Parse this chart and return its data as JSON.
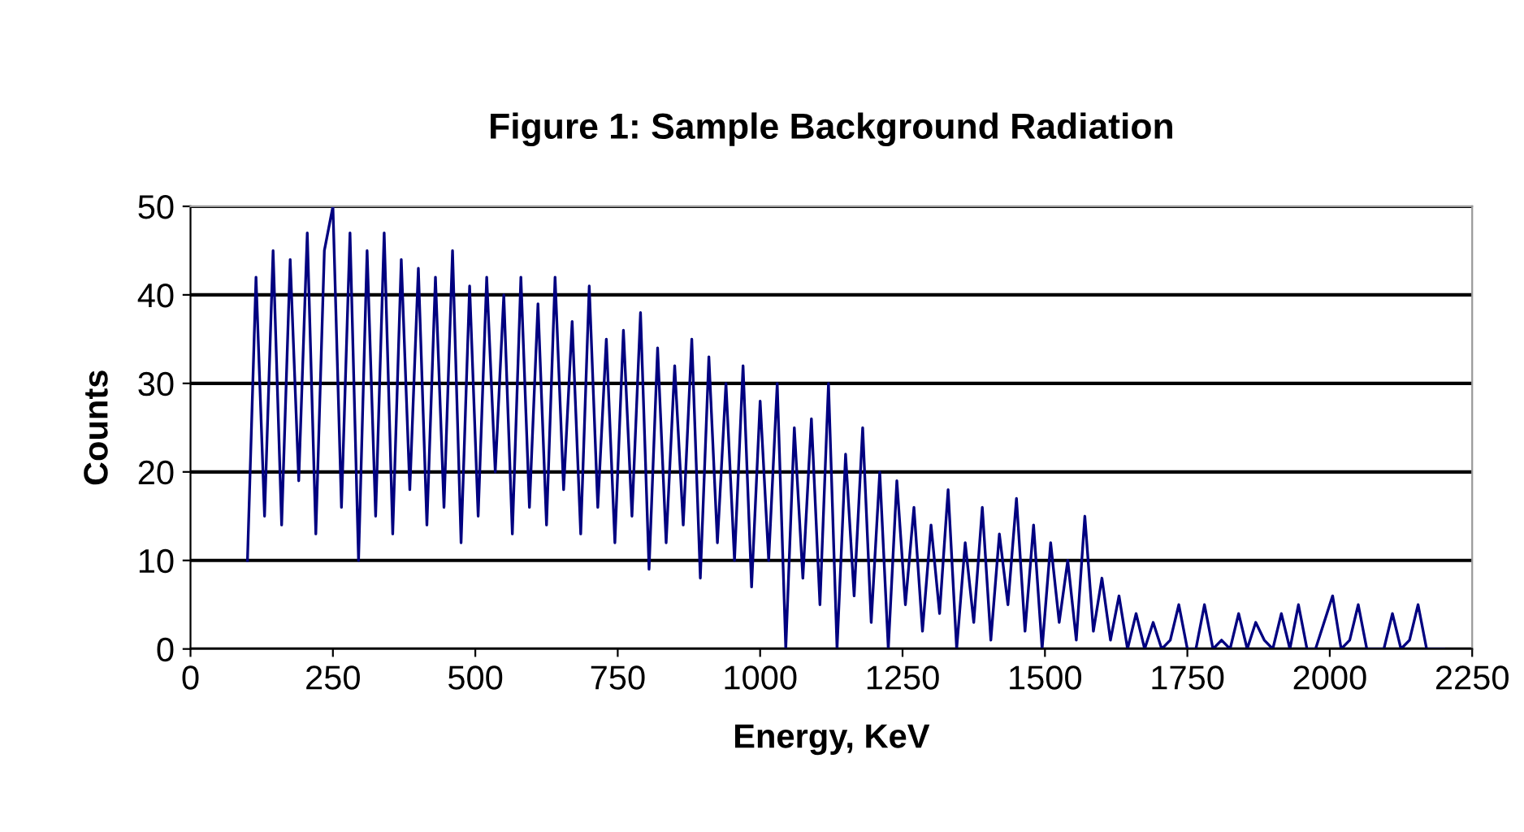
{
  "chart_data": {
    "type": "line",
    "title": "Figure 1: Sample Background Radiation",
    "xlabel": "Energy, KeV",
    "ylabel": "Counts",
    "x": [
      100,
      115,
      130,
      145,
      160,
      175,
      190,
      205,
      220,
      235,
      250,
      265,
      280,
      295,
      310,
      325,
      340,
      355,
      370,
      385,
      400,
      415,
      430,
      445,
      460,
      475,
      490,
      505,
      520,
      535,
      550,
      565,
      580,
      595,
      610,
      625,
      640,
      655,
      670,
      685,
      700,
      715,
      730,
      745,
      760,
      775,
      790,
      805,
      820,
      835,
      850,
      865,
      880,
      895,
      910,
      925,
      940,
      955,
      970,
      985,
      1000,
      1015,
      1030,
      1045,
      1060,
      1075,
      1090,
      1105,
      1120,
      1135,
      1150,
      1165,
      1180,
      1195,
      1210,
      1225,
      1240,
      1255,
      1270,
      1285,
      1300,
      1315,
      1330,
      1345,
      1360,
      1375,
      1390,
      1405,
      1420,
      1435,
      1450,
      1465,
      1480,
      1495,
      1510,
      1525,
      1540,
      1555,
      1570,
      1585,
      1600,
      1615,
      1630,
      1645,
      1660,
      1675,
      1690,
      1705,
      1720,
      1735,
      1750,
      1765,
      1780,
      1795,
      1810,
      1825,
      1840,
      1855,
      1870,
      1885,
      1900,
      1915,
      1930,
      1945,
      1960,
      1975,
      1990,
      2005,
      2020,
      2035,
      2050,
      2065,
      2080,
      2095,
      2110,
      2125,
      2140,
      2155,
      2170,
      2185,
      2200
    ],
    "series": [
      {
        "color": "#000080",
        "values": [
          10,
          42,
          15,
          45,
          14,
          44,
          19,
          47,
          13,
          45,
          50,
          16,
          47,
          10,
          45,
          15,
          47,
          13,
          44,
          18,
          43,
          14,
          42,
          16,
          45,
          12,
          41,
          15,
          42,
          20,
          40,
          13,
          42,
          16,
          39,
          14,
          42,
          18,
          37,
          13,
          41,
          16,
          35,
          12,
          36,
          15,
          38,
          9,
          34,
          12,
          32,
          14,
          35,
          8,
          33,
          12,
          30,
          10,
          32,
          7,
          28,
          10,
          30,
          0,
          25,
          8,
          26,
          5,
          30,
          0,
          22,
          6,
          25,
          3,
          20,
          0,
          19,
          5,
          16,
          2,
          14,
          4,
          18,
          0,
          12,
          3,
          16,
          1,
          13,
          5,
          17,
          2,
          14,
          0,
          12,
          3,
          10,
          1,
          15,
          2,
          8,
          1,
          6,
          0,
          4,
          0,
          3,
          0,
          1,
          5,
          0,
          0,
          5,
          0,
          1,
          0,
          4,
          0,
          3,
          1,
          0,
          4,
          0,
          5,
          0,
          0,
          3,
          6,
          0,
          1,
          5,
          0,
          0,
          0,
          4,
          0,
          1,
          5,
          0,
          0,
          0
        ]
      }
    ],
    "xlim": [
      0,
      2250
    ],
    "xticks": [
      0,
      250,
      500,
      750,
      1000,
      1250,
      1500,
      1750,
      2000,
      2250
    ],
    "ylim": [
      0,
      50
    ],
    "yticks": [
      0,
      10,
      20,
      30,
      40,
      50
    ],
    "grid": "y",
    "marker": "none",
    "line_style": "solid",
    "legend": false
  }
}
